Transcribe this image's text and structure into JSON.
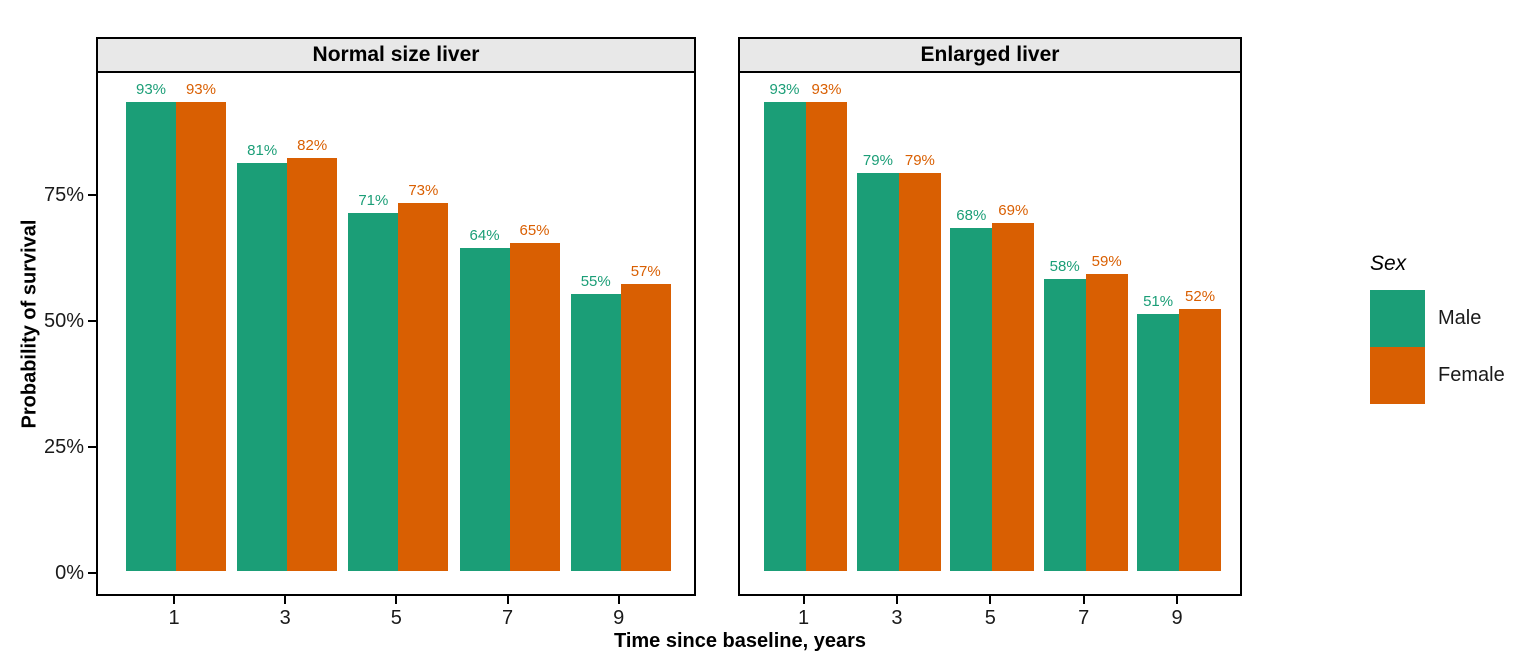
{
  "chart_data": {
    "type": "bar",
    "title": "",
    "categories": [
      "1",
      "3",
      "5",
      "7",
      "9"
    ],
    "facets": [
      {
        "label": "Normal size liver",
        "series": [
          {
            "name": "Male",
            "values": [
              93,
              81,
              71,
              64,
              55
            ]
          },
          {
            "name": "Female",
            "values": [
              93,
              82,
              73,
              65,
              57
            ]
          }
        ]
      },
      {
        "label": "Enlarged liver",
        "series": [
          {
            "name": "Male",
            "values": [
              93,
              79,
              68,
              58,
              51
            ]
          },
          {
            "name": "Female",
            "values": [
              93,
              79,
              69,
              59,
              52
            ]
          }
        ]
      }
    ],
    "xlabel": "Time since baseline, years",
    "ylabel": "Probability of survival",
    "y_ticks": [
      {
        "value": 0,
        "label": "0%"
      },
      {
        "value": 25,
        "label": "25%"
      },
      {
        "value": 50,
        "label": "50%"
      },
      {
        "value": 75,
        "label": "75%"
      }
    ],
    "ylim": [
      0,
      100
    ],
    "value_suffix": "%",
    "grid": "off",
    "legend_position": "right",
    "legend": {
      "title": "Sex",
      "entries": [
        {
          "label": "Male",
          "color": "#1B9E77"
        },
        {
          "label": "Female",
          "color": "#D95F02"
        }
      ]
    },
    "style": {
      "strip_background": "#E8E8E8",
      "panel_border": "#000000",
      "background": "#ffffff"
    }
  }
}
